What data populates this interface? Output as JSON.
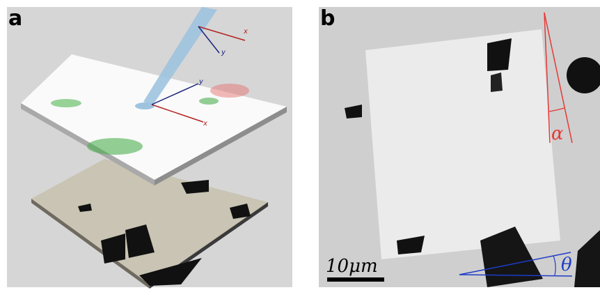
{
  "panels": [
    {
      "label": "a",
      "probe_axes": {
        "x": "x",
        "y": "y"
      },
      "sample_axes": {
        "x": "x",
        "y": "y"
      }
    },
    {
      "label": "b",
      "angle_alpha": "α",
      "angle_theta": "θ",
      "scale_bar": "10μm"
    }
  ]
}
